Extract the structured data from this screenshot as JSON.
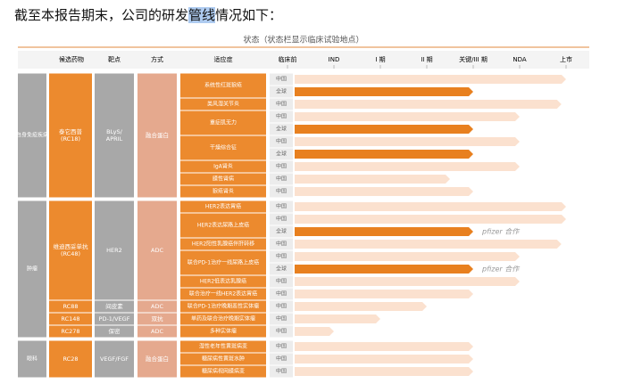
{
  "intro": {
    "before": "截至本报告期末，公司的研发",
    "highlight": "管线",
    "after": "情况如下："
  },
  "status_title": "状态（状态栏显示临床试验地点）",
  "columns": {
    "drug": "候选药物",
    "target": "靶点",
    "mode": "方式",
    "indication": "适应症"
  },
  "stages": [
    "临床前",
    "IND",
    "I 期",
    "II 期",
    "关键/III 期",
    "NDA",
    "上市"
  ],
  "groups": [
    {
      "label": "自身免疫疾病",
      "drugs": [
        {
          "name": "泰它西普\n(RC18)",
          "target": "BLyS/\nAPRIL",
          "mode": "融合蛋白",
          "indications": [
            {
              "name": "系统性红斑狼疮",
              "trials": [
                {
                  "region": "中国",
                  "progress": 6
                },
                {
                  "region": "全球",
                  "progress": 4
                }
              ]
            },
            {
              "name": "类风湿关节炎",
              "trials": [
                {
                  "region": "中国",
                  "progress": 5.9
                }
              ]
            },
            {
              "name": "重症肌无力",
              "trials": [
                {
                  "region": "中国",
                  "progress": 5
                },
                {
                  "region": "全球",
                  "progress": 4
                }
              ]
            },
            {
              "name": "干燥综合征",
              "trials": [
                {
                  "region": "中国",
                  "progress": 5
                },
                {
                  "region": "全球",
                  "progress": 4
                }
              ]
            },
            {
              "name": "IgA肾炎",
              "trials": [
                {
                  "region": "中国",
                  "progress": 5
                }
              ]
            },
            {
              "name": "膜性肾病",
              "trials": [
                {
                  "region": "中国",
                  "progress": 3.5
                }
              ]
            },
            {
              "name": "狼疮肾炎",
              "trials": [
                {
                  "region": "中国",
                  "progress": 4
                }
              ]
            }
          ]
        }
      ]
    },
    {
      "label": "肿瘤",
      "drugs": [
        {
          "name": "维迪西妥单抗\n(RC48)",
          "target": "HER2",
          "mode": "ADC",
          "indications": [
            {
              "name": "HER2表达胃癌",
              "trials": [
                {
                  "region": "中国",
                  "progress": 6
                }
              ]
            },
            {
              "name": "HER2表达尿路上皮癌",
              "trials": [
                {
                  "region": "中国",
                  "progress": 6
                },
                {
                  "region": "全球",
                  "progress": 4,
                  "note": "pfizer 合作"
                }
              ]
            },
            {
              "name": "HER2阳性乳腺癌伴肝转移",
              "trials": [
                {
                  "region": "中国",
                  "progress": 5.9
                }
              ]
            },
            {
              "name": "联合PD-1治疗一线尿路上皮癌",
              "trials": [
                {
                  "region": "中国",
                  "progress": 5
                },
                {
                  "region": "全球",
                  "progress": 4,
                  "note": "pfizer 合作"
                }
              ]
            },
            {
              "name": "HER2低表达乳腺癌",
              "trials": [
                {
                  "region": "中国",
                  "progress": 5
                }
              ]
            },
            {
              "name": "联合治疗一线HER2表达胃癌",
              "trials": [
                {
                  "region": "中国",
                  "progress": 4
                }
              ]
            }
          ]
        },
        {
          "name": "RC88",
          "target": "间皮素",
          "mode": "ADC",
          "indications": [
            {
              "name": "联合PD-1治疗晚期恶性实体瘤",
              "trials": [
                {
                  "region": "中国",
                  "progress": 3
                }
              ]
            }
          ]
        },
        {
          "name": "RC148",
          "target": "PD-1/VEGF",
          "mode": "双抗",
          "indications": [
            {
              "name": "单药及联合治疗晚期实体瘤",
              "trials": [
                {
                  "region": "中国",
                  "progress": 2
                }
              ]
            }
          ]
        },
        {
          "name": "RC278",
          "target": "保密",
          "mode": "ADC",
          "indications": [
            {
              "name": "多种实体瘤",
              "trials": [
                {
                  "region": "中国",
                  "progress": 1
                }
              ]
            }
          ]
        }
      ]
    },
    {
      "label": "眼科",
      "drugs": [
        {
          "name": "RC28",
          "target": "VEGF/FGF",
          "mode": "融合蛋白",
          "indications": [
            {
              "name": "湿性老年性黄斑病变",
              "trials": [
                {
                  "region": "中国",
                  "progress": 4
                }
              ]
            },
            {
              "name": "糖尿病性黄斑水肿",
              "trials": [
                {
                  "region": "中国",
                  "progress": 4
                }
              ]
            },
            {
              "name": "糖尿病视网膜病变",
              "trials": [
                {
                  "region": "中国",
                  "progress": 4
                }
              ]
            }
          ]
        }
      ]
    }
  ]
}
